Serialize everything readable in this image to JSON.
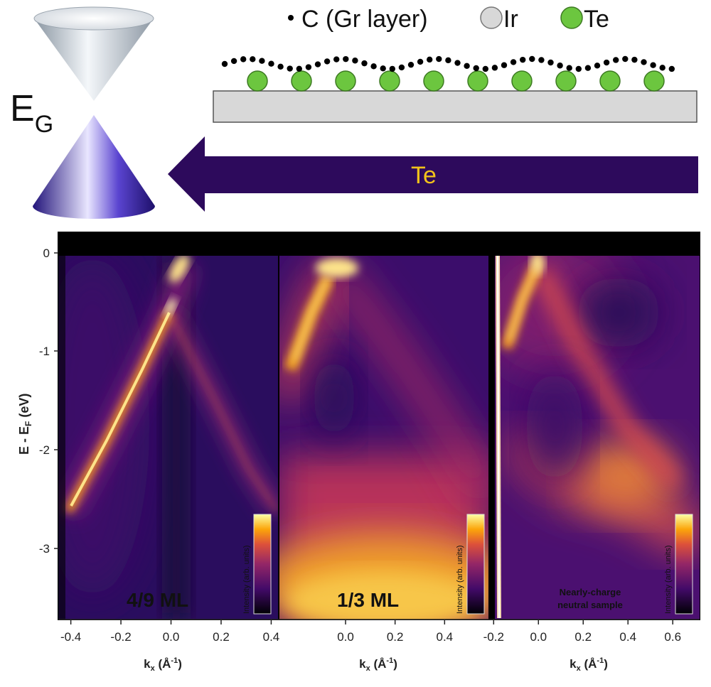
{
  "legend": {
    "c_label": "C (Gr layer)",
    "ir_label": "Ir",
    "te_label": "Te"
  },
  "gap_label": {
    "main": "E",
    "sub": "G"
  },
  "arrow_label": "Te",
  "y_axis": {
    "label_main": "E - E",
    "label_sub": "F",
    "label_unit": " (eV)",
    "ticks": [
      "0",
      "-1",
      "-2",
      "-3"
    ]
  },
  "x_axis_label": {
    "main": "k",
    "sub": "x",
    "unit": " (Å",
    "sup": "-1",
    "close": ")"
  },
  "panels": [
    {
      "label": "4/9 ML",
      "x_ticks": [
        "-0.4",
        "-0.2",
        "0.0",
        "0.2",
        "0.4"
      ],
      "colorbar_label": "Intensity (arb. units)"
    },
    {
      "label": "1/3 ML",
      "x_ticks": [
        "0.0",
        "0.2",
        "0.4"
      ],
      "colorbar_label": "Intensity (arb. units)"
    },
    {
      "label_line1": "Nearly-charge",
      "label_line2": "neutral sample",
      "x_ticks": [
        "-0.2",
        "0.0",
        "0.2",
        "0.4",
        "0.6"
      ],
      "colorbar_label": "Intensity (arb. units)"
    }
  ],
  "colors": {
    "arrow": "#2d0a5c",
    "arrow_text": "#f2c21b",
    "te_atom": "#6cc63f",
    "ir_slab": "#d8d8d8",
    "upper_cone": "#c9d2db",
    "lower_cone": "#3a24a8"
  }
}
